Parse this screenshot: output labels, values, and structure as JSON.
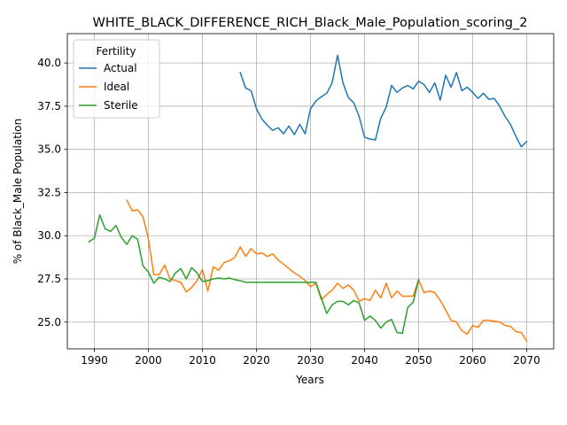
{
  "chart_data": {
    "type": "line",
    "title": "WHITE_BLACK_DIFFERENCE_RICH_Black_Male_Population_scoring_2",
    "xlabel": "Years",
    "ylabel": "% of Black_Male Population",
    "xlim": [
      1985,
      2075
    ],
    "ylim": [
      23.45,
      41.7
    ],
    "x_ticks": [
      1990,
      2000,
      2010,
      2020,
      2030,
      2040,
      2050,
      2060,
      2070
    ],
    "y_ticks": [
      25.0,
      27.5,
      30.0,
      32.5,
      35.0,
      37.5,
      40.0
    ],
    "x_tick_labels": [
      "1990",
      "2000",
      "2010",
      "2020",
      "2030",
      "2040",
      "2050",
      "2060",
      "2070"
    ],
    "y_tick_labels": [
      "25.0",
      "27.5",
      "30.0",
      "32.5",
      "35.0",
      "37.5",
      "40.0"
    ],
    "grid": true,
    "legend": {
      "title": "Fertility",
      "placement": "top-left"
    },
    "series": [
      {
        "name": "Actual",
        "color": "#1f77b4",
        "x": [
          2017,
          2018,
          2019,
          2020,
          2021,
          2022,
          2023,
          2024,
          2025,
          2026,
          2027,
          2028,
          2029,
          2030,
          2031,
          2032,
          2033,
          2034,
          2035,
          2036,
          2037,
          2038,
          2039,
          2040,
          2041,
          2042,
          2043,
          2044,
          2045,
          2046,
          2047,
          2048,
          2049,
          2050,
          2051,
          2052,
          2053,
          2054,
          2055,
          2056,
          2057,
          2058,
          2059,
          2060,
          2061,
          2062,
          2063,
          2064,
          2065,
          2066,
          2067,
          2068,
          2069,
          2070
        ],
        "values": [
          39.45,
          38.55,
          38.4,
          37.35,
          36.75,
          36.4,
          36.1,
          36.25,
          35.9,
          36.35,
          35.85,
          36.45,
          35.9,
          37.35,
          37.8,
          38.05,
          38.25,
          38.85,
          40.45,
          38.85,
          38.0,
          37.7,
          36.9,
          35.7,
          35.6,
          35.55,
          36.8,
          37.45,
          38.7,
          38.3,
          38.55,
          38.7,
          38.5,
          38.95,
          38.75,
          38.3,
          38.85,
          37.85,
          39.3,
          38.6,
          39.45,
          38.4,
          38.6,
          38.3,
          37.95,
          38.25,
          37.9,
          37.95,
          37.5,
          36.9,
          36.45,
          35.75,
          35.15,
          35.45
        ]
      },
      {
        "name": "Ideal",
        "color": "#ff7f0e",
        "x": [
          1996,
          1997,
          1998,
          1999,
          2000,
          2001,
          2002,
          2003,
          2004,
          2005,
          2006,
          2007,
          2008,
          2009,
          2010,
          2011,
          2012,
          2013,
          2014,
          2015,
          2016,
          2017,
          2018,
          2019,
          2020,
          2021,
          2022,
          2023,
          2024,
          2025,
          2026,
          2027,
          2028,
          2029,
          2030,
          2031,
          2032,
          2033,
          2034,
          2035,
          2036,
          2037,
          2038,
          2039,
          2040,
          2041,
          2042,
          2043,
          2044,
          2045,
          2046,
          2047,
          2048,
          2049,
          2050,
          2051,
          2052,
          2053,
          2054,
          2055,
          2056,
          2057,
          2058,
          2059,
          2060,
          2061,
          2062,
          2063,
          2064,
          2065,
          2066,
          2067,
          2068,
          2069,
          2070
        ],
        "values": [
          32.05,
          31.45,
          31.5,
          31.1,
          29.8,
          27.75,
          27.75,
          28.3,
          27.5,
          27.4,
          27.3,
          26.75,
          27.0,
          27.4,
          28.05,
          26.8,
          28.2,
          28.0,
          28.45,
          28.55,
          28.75,
          29.35,
          28.8,
          29.25,
          28.95,
          29.0,
          28.8,
          28.95,
          28.6,
          28.35,
          28.1,
          27.85,
          27.65,
          27.4,
          27.05,
          27.25,
          26.3,
          26.6,
          26.85,
          27.25,
          26.95,
          27.15,
          26.85,
          26.2,
          26.35,
          26.25,
          26.85,
          26.4,
          27.25,
          26.4,
          26.8,
          26.5,
          26.5,
          26.5,
          27.45,
          26.7,
          26.8,
          26.7,
          26.25,
          25.7,
          25.1,
          25.0,
          24.5,
          24.3,
          24.8,
          24.7,
          25.1,
          25.1,
          25.05,
          25.0,
          24.8,
          24.75,
          24.45,
          24.4,
          23.9
        ]
      },
      {
        "name": "Sterile",
        "color": "#2ca02c",
        "x": [
          1989,
          1990,
          1991,
          1992,
          1993,
          1994,
          1995,
          1996,
          1997,
          1998,
          1999,
          2000,
          2001,
          2002,
          2003,
          2004,
          2005,
          2006,
          2007,
          2008,
          2009,
          2010,
          2011,
          2012,
          2013,
          2014,
          2015,
          2016,
          2017,
          2018,
          2019,
          2020,
          2021,
          2022,
          2023,
          2024,
          2025,
          2026,
          2027,
          2028,
          2029,
          2030,
          2031,
          2032,
          2033,
          2034,
          2035,
          2036,
          2037,
          2038,
          2039,
          2040,
          2041,
          2042,
          2043,
          2044,
          2045,
          2046,
          2047,
          2048,
          2049,
          2050
        ],
        "values": [
          29.65,
          29.85,
          31.2,
          30.4,
          30.25,
          30.6,
          29.9,
          29.5,
          30.0,
          29.8,
          28.25,
          27.9,
          27.25,
          27.6,
          27.5,
          27.35,
          27.85,
          28.1,
          27.5,
          28.15,
          27.85,
          27.35,
          27.4,
          27.5,
          27.55,
          27.5,
          27.55,
          27.45,
          27.4,
          27.3,
          27.3,
          27.3,
          27.3,
          27.3,
          27.3,
          27.3,
          27.3,
          27.3,
          27.3,
          27.3,
          27.3,
          27.3,
          27.3,
          26.4,
          25.5,
          26.0,
          26.2,
          26.2,
          26.0,
          26.25,
          26.1,
          25.1,
          25.35,
          25.1,
          24.65,
          25.0,
          25.15,
          24.4,
          24.35,
          25.85,
          26.15,
          27.45
        ]
      }
    ]
  }
}
